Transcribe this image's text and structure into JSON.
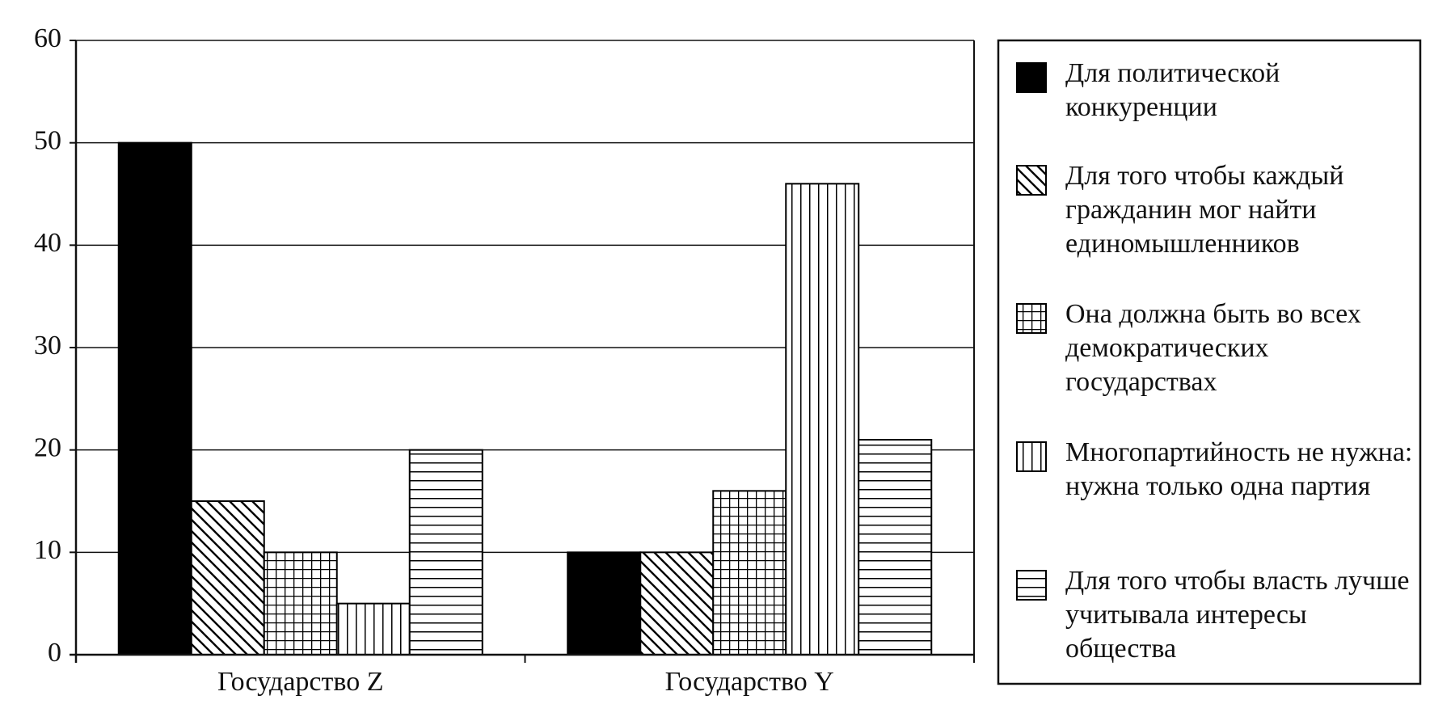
{
  "chart_data": {
    "type": "bar",
    "categories": [
      "Государство Z",
      "Государство Y"
    ],
    "series": [
      {
        "name": "Для политической конкуренции",
        "color": "#000000",
        "pattern": "solid",
        "values": [
          50,
          10
        ]
      },
      {
        "name": "Для того чтобы каждый гражданин мог найти единомышленников",
        "color": "#000000",
        "pattern": "diagonal",
        "values": [
          15,
          10
        ]
      },
      {
        "name": "Она должна быть во всех демократических государствах",
        "color": "#000000",
        "pattern": "grid",
        "values": [
          10,
          16
        ]
      },
      {
        "name": "Многопартийность не нужна: нужна только одна партия",
        "color": "#000000",
        "pattern": "vertical",
        "values": [
          5,
          46
        ]
      },
      {
        "name": "Для того чтобы власть лучше учитывала интересы общества",
        "color": "#000000",
        "pattern": "horizontal",
        "values": [
          20,
          21
        ]
      }
    ],
    "ylim": [
      0,
      60
    ],
    "yticks": [
      0,
      10,
      20,
      30,
      40,
      50,
      60
    ],
    "grid": true
  }
}
